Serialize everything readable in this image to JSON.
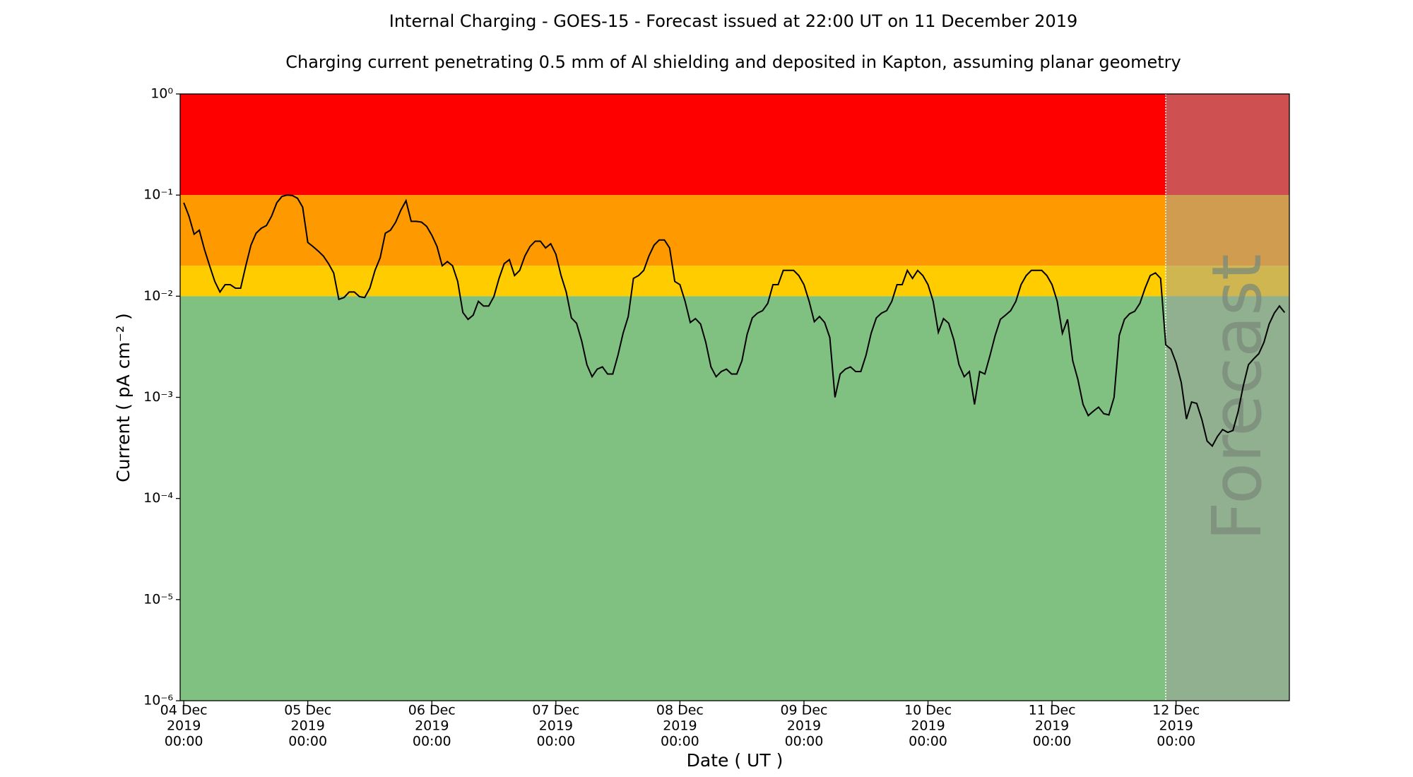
{
  "chart_data": {
    "type": "line",
    "title": "Internal Charging - GOES-15 - Forecast issued at 22:00 UT on 11 December 2019",
    "subtitle": "Charging current penetrating 0.5 mm of Al shielding and deposited in Kapton, assuming planar geometry",
    "x_label": "Date ( UT )",
    "y_label": "Current ( pA cm⁻² )",
    "log_y": true,
    "color": "#000000",
    "xlim": [
      "2019-12-03 23:18",
      "2019-12-12 21:55"
    ],
    "ylim": [
      1e-06,
      1
    ],
    "yticks": [
      {
        "value": 1,
        "label": "10⁰"
      },
      {
        "value": 0.1,
        "label": "10⁻¹"
      },
      {
        "value": 0.01,
        "label": "10⁻²"
      },
      {
        "value": 0.001,
        "label": "10⁻³"
      },
      {
        "value": 0.0001,
        "label": "10⁻⁴"
      },
      {
        "value": 1e-05,
        "label": "10⁻⁵"
      },
      {
        "value": 1e-06,
        "label": "10⁻⁶"
      }
    ],
    "xticks": [
      {
        "value": "2019-12-04 00:00",
        "label": [
          "04 Dec",
          "2019",
          "00:00"
        ]
      },
      {
        "value": "2019-12-05 00:00",
        "label": [
          "05 Dec",
          "2019",
          "00:00"
        ]
      },
      {
        "value": "2019-12-06 00:00",
        "label": [
          "06 Dec",
          "2019",
          "00:00"
        ]
      },
      {
        "value": "2019-12-07 00:00",
        "label": [
          "07 Dec",
          "2019",
          "00:00"
        ]
      },
      {
        "value": "2019-12-08 00:00",
        "label": [
          "08 Dec",
          "2019",
          "00:00"
        ]
      },
      {
        "value": "2019-12-09 00:00",
        "label": [
          "09 Dec",
          "2019",
          "00:00"
        ]
      },
      {
        "value": "2019-12-10 00:00",
        "label": [
          "10 Dec",
          "2019",
          "00:00"
        ]
      },
      {
        "value": "2019-12-11 00:00",
        "label": [
          "11 Dec",
          "2019",
          "00:00"
        ]
      },
      {
        "value": "2019-12-12 00:00",
        "label": [
          "12 Dec",
          "2019",
          "00:00"
        ]
      }
    ],
    "bands": [
      {
        "from": 0.1,
        "to": 1,
        "color": "#ff0000"
      },
      {
        "from": 0.02,
        "to": 0.1,
        "color": "#ff9900"
      },
      {
        "from": 0.01,
        "to": 0.02,
        "color": "#ffcc00"
      },
      {
        "from": 1e-06,
        "to": 0.01,
        "color": "#80c080"
      }
    ],
    "forecast": {
      "label": "Forecast",
      "start": "2019-12-11 22:00",
      "color": "#a0a0a0"
    },
    "x": [
      "2019-12-04 00:00",
      "2019-12-04 01:00",
      "2019-12-04 02:00",
      "2019-12-04 03:00",
      "2019-12-04 04:00",
      "2019-12-04 05:00",
      "2019-12-04 06:00",
      "2019-12-04 07:00",
      "2019-12-04 08:00",
      "2019-12-04 09:00",
      "2019-12-04 10:00",
      "2019-12-04 11:00",
      "2019-12-04 12:00",
      "2019-12-04 13:00",
      "2019-12-04 14:00",
      "2019-12-04 15:00",
      "2019-12-04 16:00",
      "2019-12-04 17:00",
      "2019-12-04 18:00",
      "2019-12-04 19:00",
      "2019-12-04 20:00",
      "2019-12-04 21:00",
      "2019-12-04 22:00",
      "2019-12-04 23:00",
      "2019-12-05 00:00",
      "2019-12-05 01:00",
      "2019-12-05 02:00",
      "2019-12-05 03:00",
      "2019-12-05 04:00",
      "2019-12-05 05:00",
      "2019-12-05 06:00",
      "2019-12-05 07:00",
      "2019-12-05 08:00",
      "2019-12-05 09:00",
      "2019-12-05 10:00",
      "2019-12-05 11:00",
      "2019-12-05 12:00",
      "2019-12-05 13:00",
      "2019-12-05 14:00",
      "2019-12-05 15:00",
      "2019-12-05 16:00",
      "2019-12-05 17:00",
      "2019-12-05 18:00",
      "2019-12-05 19:00",
      "2019-12-05 20:00",
      "2019-12-05 21:00",
      "2019-12-05 22:00",
      "2019-12-05 23:00",
      "2019-12-06 00:00",
      "2019-12-06 01:00",
      "2019-12-06 02:00",
      "2019-12-06 03:00",
      "2019-12-06 04:00",
      "2019-12-06 05:00",
      "2019-12-06 06:00",
      "2019-12-06 07:00",
      "2019-12-06 08:00",
      "2019-12-06 09:00",
      "2019-12-06 10:00",
      "2019-12-06 11:00",
      "2019-12-06 12:00",
      "2019-12-06 13:00",
      "2019-12-06 14:00",
      "2019-12-06 15:00",
      "2019-12-06 16:00",
      "2019-12-06 17:00",
      "2019-12-06 18:00",
      "2019-12-06 19:00",
      "2019-12-06 20:00",
      "2019-12-06 21:00",
      "2019-12-06 22:00",
      "2019-12-06 23:00",
      "2019-12-07 00:00",
      "2019-12-07 01:00",
      "2019-12-07 02:00",
      "2019-12-07 03:00",
      "2019-12-07 04:00",
      "2019-12-07 05:00",
      "2019-12-07 06:00",
      "2019-12-07 07:00",
      "2019-12-07 08:00",
      "2019-12-07 09:00",
      "2019-12-07 10:00",
      "2019-12-07 11:00",
      "2019-12-07 12:00",
      "2019-12-07 13:00",
      "2019-12-07 14:00",
      "2019-12-07 15:00",
      "2019-12-07 16:00",
      "2019-12-07 17:00",
      "2019-12-07 18:00",
      "2019-12-07 19:00",
      "2019-12-07 20:00",
      "2019-12-07 21:00",
      "2019-12-07 22:00",
      "2019-12-07 23:00",
      "2019-12-08 00:00",
      "2019-12-08 01:00",
      "2019-12-08 02:00",
      "2019-12-08 03:00",
      "2019-12-08 04:00",
      "2019-12-08 05:00",
      "2019-12-08 06:00",
      "2019-12-08 07:00",
      "2019-12-08 08:00",
      "2019-12-08 09:00",
      "2019-12-08 10:00",
      "2019-12-08 11:00",
      "2019-12-08 12:00",
      "2019-12-08 13:00",
      "2019-12-08 14:00",
      "2019-12-08 15:00",
      "2019-12-08 16:00",
      "2019-12-08 17:00",
      "2019-12-08 18:00",
      "2019-12-08 19:00",
      "2019-12-08 20:00",
      "2019-12-08 21:00",
      "2019-12-08 22:00",
      "2019-12-08 23:00",
      "2019-12-09 00:00",
      "2019-12-09 01:00",
      "2019-12-09 02:00",
      "2019-12-09 03:00",
      "2019-12-09 04:00",
      "2019-12-09 05:00",
      "2019-12-09 06:00",
      "2019-12-09 07:00",
      "2019-12-09 08:00",
      "2019-12-09 09:00",
      "2019-12-09 10:00",
      "2019-12-09 11:00",
      "2019-12-09 12:00",
      "2019-12-09 13:00",
      "2019-12-09 14:00",
      "2019-12-09 15:00",
      "2019-12-09 16:00",
      "2019-12-09 17:00",
      "2019-12-09 18:00",
      "2019-12-09 19:00",
      "2019-12-09 20:00",
      "2019-12-09 21:00",
      "2019-12-09 22:00",
      "2019-12-09 23:00",
      "2019-12-10 00:00",
      "2019-12-10 01:00",
      "2019-12-10 02:00",
      "2019-12-10 03:00",
      "2019-12-10 04:00",
      "2019-12-10 05:00",
      "2019-12-10 06:00",
      "2019-12-10 07:00",
      "2019-12-10 08:00",
      "2019-12-10 09:00",
      "2019-12-10 10:00",
      "2019-12-10 11:00",
      "2019-12-10 12:00",
      "2019-12-10 13:00",
      "2019-12-10 14:00",
      "2019-12-10 15:00",
      "2019-12-10 16:00",
      "2019-12-10 17:00",
      "2019-12-10 18:00",
      "2019-12-10 19:00",
      "2019-12-10 20:00",
      "2019-12-10 21:00",
      "2019-12-10 22:00",
      "2019-12-10 23:00",
      "2019-12-11 00:00",
      "2019-12-11 01:00",
      "2019-12-11 02:00",
      "2019-12-11 03:00",
      "2019-12-11 04:00",
      "2019-12-11 05:00",
      "2019-12-11 06:00",
      "2019-12-11 07:00",
      "2019-12-11 08:00",
      "2019-12-11 09:00",
      "2019-12-11 10:00",
      "2019-12-11 11:00",
      "2019-12-11 12:00",
      "2019-12-11 13:00",
      "2019-12-11 14:00",
      "2019-12-11 15:00",
      "2019-12-11 16:00",
      "2019-12-11 17:00",
      "2019-12-11 18:00",
      "2019-12-11 19:00",
      "2019-12-11 20:00",
      "2019-12-11 21:00",
      "2019-12-11 22:00",
      "2019-12-11 23:00",
      "2019-12-12 00:00",
      "2019-12-12 01:00",
      "2019-12-12 02:00",
      "2019-12-12 03:00",
      "2019-12-12 04:00",
      "2019-12-12 05:00",
      "2019-12-12 06:00",
      "2019-12-12 07:00",
      "2019-12-12 08:00",
      "2019-12-12 09:00",
      "2019-12-12 10:00",
      "2019-12-12 11:00",
      "2019-12-12 12:00",
      "2019-12-12 13:00",
      "2019-12-12 14:00",
      "2019-12-12 15:00",
      "2019-12-12 16:00",
      "2019-12-12 17:00",
      "2019-12-12 18:00",
      "2019-12-12 19:00",
      "2019-12-12 20:00",
      "2019-12-12 21:00"
    ],
    "values": [
      0.084,
      0.062,
      0.041,
      0.045,
      0.029,
      0.02,
      0.014,
      0.011,
      0.013,
      0.013,
      0.012,
      0.012,
      0.02,
      0.032,
      0.042,
      0.047,
      0.05,
      0.062,
      0.084,
      0.097,
      0.1,
      0.099,
      0.093,
      0.076,
      0.034,
      0.031,
      0.028,
      0.025,
      0.021,
      0.017,
      0.0093,
      0.0097,
      0.011,
      0.011,
      0.0099,
      0.0097,
      0.012,
      0.018,
      0.024,
      0.042,
      0.045,
      0.054,
      0.071,
      0.088,
      0.055,
      0.055,
      0.054,
      0.049,
      0.04,
      0.031,
      0.02,
      0.022,
      0.02,
      0.014,
      0.0069,
      0.0059,
      0.0065,
      0.0089,
      0.008,
      0.008,
      0.0099,
      0.015,
      0.021,
      0.023,
      0.016,
      0.018,
      0.025,
      0.031,
      0.035,
      0.035,
      0.03,
      0.033,
      0.026,
      0.016,
      0.011,
      0.0061,
      0.0054,
      0.0036,
      0.0021,
      0.0016,
      0.0019,
      0.002,
      0.0017,
      0.0017,
      0.0026,
      0.0043,
      0.0063,
      0.015,
      0.016,
      0.018,
      0.025,
      0.032,
      0.036,
      0.036,
      0.03,
      0.014,
      0.013,
      0.0089,
      0.0055,
      0.006,
      0.0053,
      0.0035,
      0.002,
      0.0016,
      0.0018,
      0.0019,
      0.0017,
      0.0017,
      0.0023,
      0.0042,
      0.0061,
      0.0068,
      0.0072,
      0.0085,
      0.013,
      0.013,
      0.018,
      0.018,
      0.018,
      0.016,
      0.013,
      0.0089,
      0.0056,
      0.0063,
      0.0055,
      0.0039,
      0.001,
      0.0017,
      0.0019,
      0.002,
      0.0018,
      0.0018,
      0.0026,
      0.0043,
      0.0061,
      0.0068,
      0.0072,
      0.0089,
      0.013,
      0.013,
      0.018,
      0.015,
      0.018,
      0.016,
      0.013,
      0.0089,
      0.0044,
      0.006,
      0.0054,
      0.0037,
      0.0021,
      0.0016,
      0.0018,
      0.00085,
      0.0018,
      0.0017,
      0.0026,
      0.0041,
      0.0059,
      0.0065,
      0.0072,
      0.0089,
      0.013,
      0.016,
      0.018,
      0.018,
      0.018,
      0.016,
      0.013,
      0.0089,
      0.0043,
      0.0059,
      0.0023,
      0.0015,
      0.00085,
      0.00066,
      0.00073,
      0.0008,
      0.00069,
      0.00067,
      0.001,
      0.0041,
      0.0059,
      0.0067,
      0.0071,
      0.0085,
      0.012,
      0.016,
      0.017,
      0.015,
      0.0033,
      0.003,
      0.0022,
      0.0014,
      0.00061,
      0.0009,
      0.00087,
      0.0006,
      0.00037,
      0.00033,
      0.00041,
      0.00048,
      0.00045,
      0.00047,
      0.00072,
      0.0013,
      0.0021,
      0.0024,
      0.0027,
      0.0035,
      0.0053,
      0.0068,
      0.008,
      0.0069
    ]
  }
}
